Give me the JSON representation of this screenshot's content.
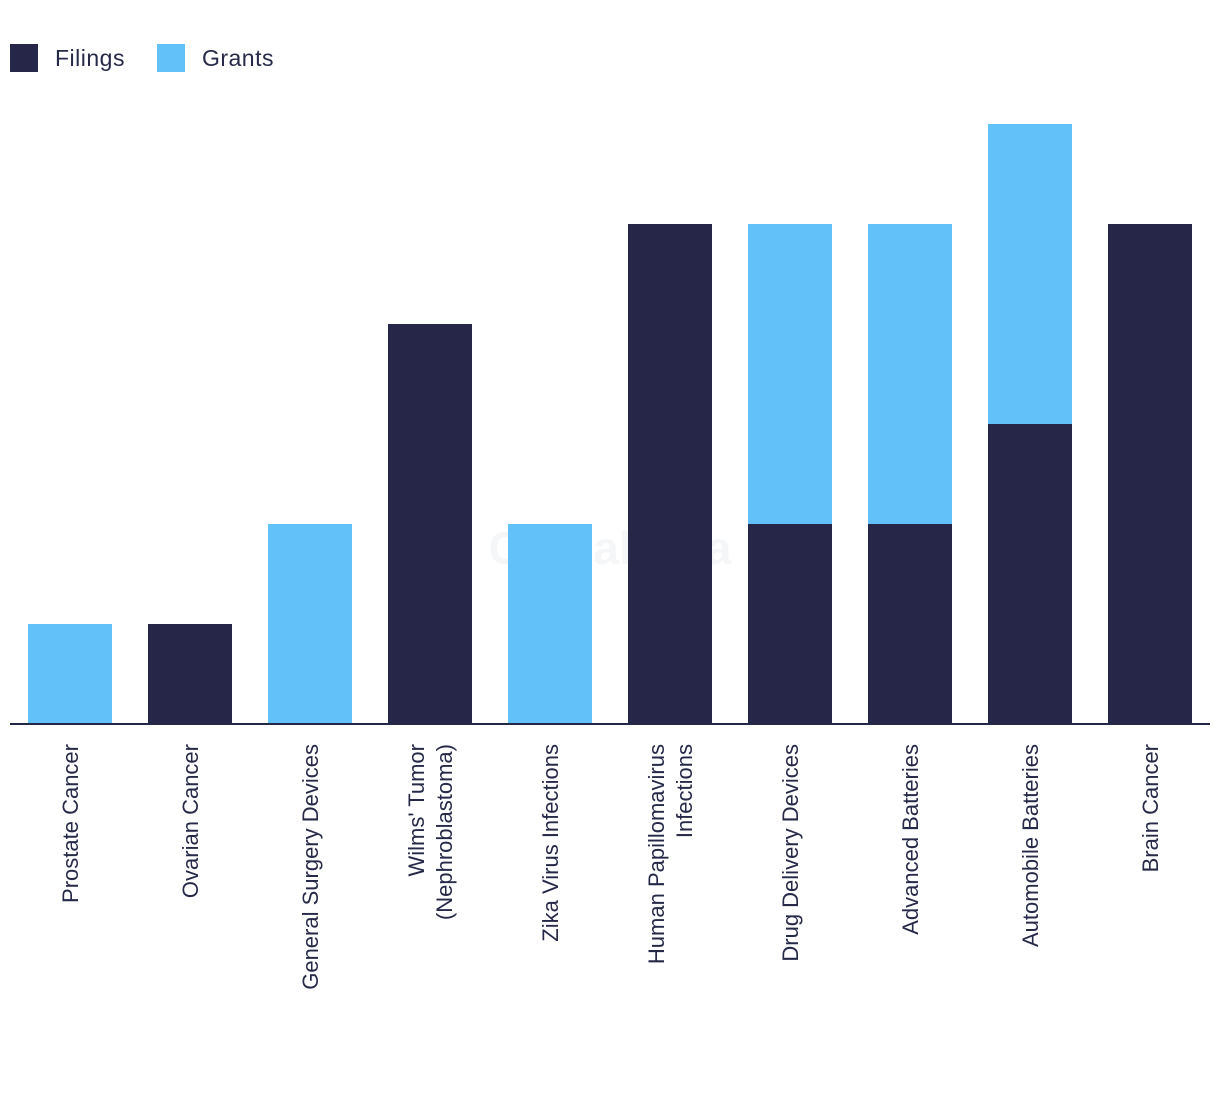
{
  "legend": {
    "filings_label": "Filings",
    "grants_label": "Grants"
  },
  "watermark": "GlobalData",
  "colors": {
    "filings": "#262748",
    "grants": "#62c1f9",
    "axis": "#262748",
    "label": "#262a48"
  },
  "chart_data": {
    "type": "bar",
    "stacked": true,
    "title": "",
    "xlabel": "",
    "ylabel": "",
    "ylim": [
      0,
      6
    ],
    "grid": false,
    "legend_position": "top-left",
    "categories": [
      [
        "Prostate Cancer"
      ],
      [
        "Ovarian Cancer"
      ],
      [
        "General Surgery Devices"
      ],
      [
        "Wilms' Tumor",
        "(Nephroblastoma)"
      ],
      [
        "Zika Virus Infections"
      ],
      [
        "Human Papillomavirus",
        "Infections"
      ],
      [
        "Drug Delivery Devices"
      ],
      [
        "Advanced Batteries"
      ],
      [
        "Automobile Batteries"
      ],
      [
        "Brain Cancer"
      ]
    ],
    "series": [
      {
        "name": "Filings",
        "values": [
          0,
          1,
          0,
          4,
          0,
          5,
          2,
          2,
          3,
          5
        ]
      },
      {
        "name": "Grants",
        "values": [
          1,
          0,
          2,
          0,
          2,
          0,
          3,
          3,
          3,
          0
        ]
      }
    ]
  }
}
